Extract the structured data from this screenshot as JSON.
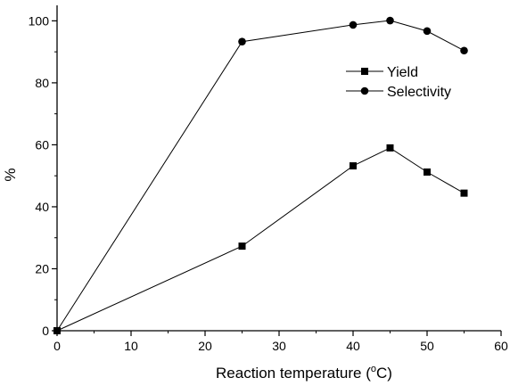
{
  "chart_data": {
    "type": "line",
    "title": "",
    "xlabel": "Reaction temperature (",
    "xlabel_sup": "o",
    "xlabel_unit": "C)",
    "ylabel": "%",
    "xlim": [
      0,
      60
    ],
    "ylim": [
      0,
      105
    ],
    "xticks": [
      0,
      10,
      20,
      30,
      40,
      50,
      60
    ],
    "yticks": [
      0,
      20,
      40,
      60,
      80,
      100
    ],
    "grid": false,
    "legend_position": "top-right",
    "series": [
      {
        "name": "Yield",
        "marker": "square",
        "color": "#000000",
        "x": [
          0,
          25,
          40,
          45,
          50,
          55
        ],
        "y": [
          0,
          27.3,
          53.2,
          59.0,
          51.2,
          44.4
        ]
      },
      {
        "name": "Selectivity",
        "marker": "circle",
        "color": "#000000",
        "x": [
          0,
          25,
          40,
          45,
          50,
          55
        ],
        "y": [
          0,
          93.3,
          98.7,
          100.1,
          96.7,
          90.4
        ]
      }
    ]
  }
}
